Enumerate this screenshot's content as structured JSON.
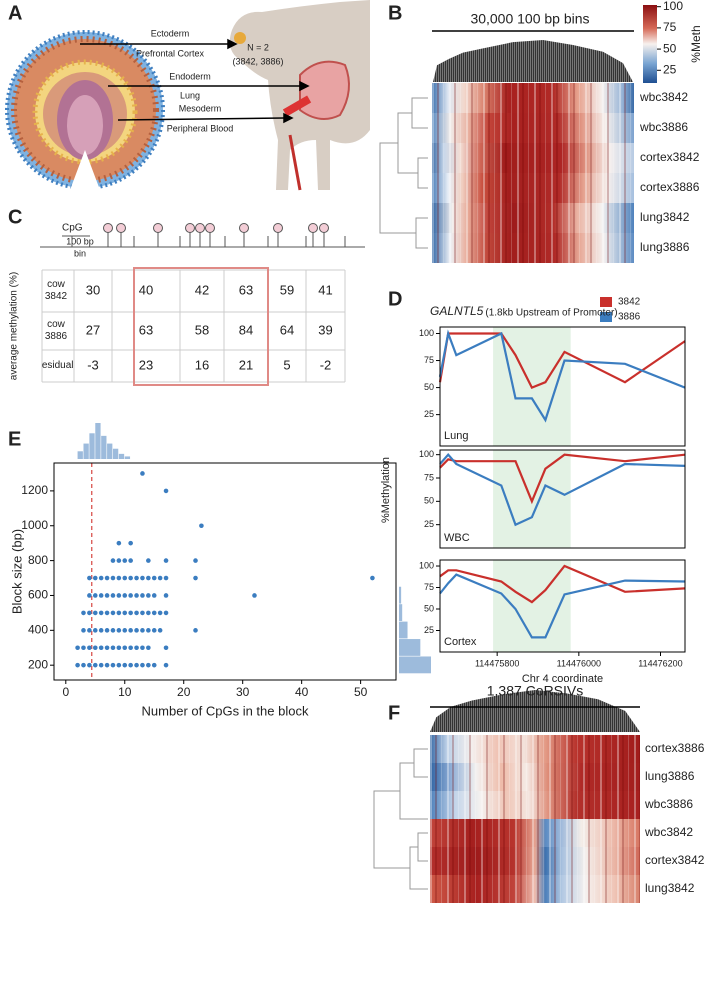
{
  "panel_a": {
    "letter": "A",
    "ectoderm": "Ectoderm",
    "ectoderm_tissue": "Prefrontal Cortex",
    "n": "N = 2",
    "animals": "(3842, 3886)",
    "endoderm": "Endoderm",
    "endoderm_tissue": "Lung",
    "mesoderm": "Mesoderm",
    "mesoderm_tissue": "Peripheral Blood"
  },
  "panel_b": {
    "letter": "B",
    "title": "30,000 100 bp bins",
    "rows": [
      "wbc3842",
      "wbc3886",
      "cortex3842",
      "cortex3886",
      "lung3842",
      "lung3886"
    ],
    "colorbar": {
      "label": "%Meth",
      "range": [
        10,
        102
      ],
      "ticks": [
        100,
        75,
        50,
        25
      ]
    }
  },
  "panel_c": {
    "letter": "C",
    "cpg": "CpG",
    "bin_size": "100 bp",
    "bin": "bin",
    "ylabel": "average methylation (%)",
    "rows": [
      [
        "cow 3842",
        30,
        40,
        42,
        63,
        59,
        41
      ],
      [
        "cow 3886",
        27,
        63,
        58,
        84,
        64,
        39
      ],
      [
        "residual",
        -3,
        23,
        16,
        21,
        5,
        -2
      ]
    ]
  },
  "panel_d": {
    "letter": "D"
  },
  "panel_e": {
    "letter": "E"
  },
  "panel_f": {
    "letter": "F",
    "title": "1,387 CoRSIVs",
    "rows": [
      "cortex3886",
      "lung3886",
      "wbc3886",
      "wbc3842",
      "cortex3842",
      "lung3842"
    ]
  },
  "chart_data": [
    {
      "type": "line",
      "title": "GALNTL5",
      "subtitle": "(1.8kb Upstream of Promoter)",
      "panel_label": "Lung",
      "x": [
        114475660,
        114475680,
        114475700,
        114475810,
        114475845,
        114475885,
        114475918,
        114475965,
        114476113,
        114476260
      ],
      "xlim": [
        114475660,
        114476260
      ],
      "ylim": [
        -4,
        106
      ],
      "yticks": [
        25,
        50,
        75,
        100
      ],
      "shade": [
        114475790,
        114475980
      ],
      "series": [
        {
          "name": "3842",
          "color": "#c9302c",
          "values": [
            55,
            100,
            100,
            100,
            80,
            50,
            55,
            83,
            55,
            93
          ]
        },
        {
          "name": "3886",
          "color": "#3b7dc0",
          "values": [
            60,
            100,
            80,
            100,
            40,
            40,
            20,
            75,
            72,
            50
          ]
        }
      ]
    },
    {
      "type": "line",
      "panel_label": "WBC",
      "ylabel": "%Methylation",
      "x": [
        114475660,
        114475680,
        114475700,
        114475810,
        114475845,
        114475885,
        114475918,
        114475965,
        114476113,
        114476260
      ],
      "xlim": [
        114475660,
        114476260
      ],
      "ylim": [
        0,
        105
      ],
      "yticks": [
        25,
        50,
        75,
        100
      ],
      "shade": [
        114475790,
        114475980
      ],
      "series": [
        {
          "color": "#c9302c",
          "values": [
            86,
            95,
            93,
            93,
            93,
            50,
            85,
            100,
            93,
            100
          ]
        },
        {
          "color": "#3b7dc0",
          "values": [
            90,
            100,
            90,
            67,
            25,
            33,
            67,
            57,
            90,
            88
          ]
        }
      ]
    },
    {
      "type": "line",
      "panel_label": "Cortex",
      "xlabel": "Chr 4 coordinate",
      "x": [
        114475660,
        114475680,
        114475700,
        114475810,
        114475845,
        114475885,
        114475918,
        114475965,
        114476113,
        114476260
      ],
      "xlim": [
        114475660,
        114476260
      ],
      "ylim": [
        0,
        107
      ],
      "yticks": [
        25,
        50,
        75,
        100
      ],
      "xticks": [
        114475800,
        114476000,
        114476200
      ],
      "shade": [
        114475790,
        114475980
      ],
      "series": [
        {
          "color": "#c9302c",
          "values": [
            88,
            95,
            95,
            82,
            70,
            58,
            72,
            100,
            70,
            74
          ]
        },
        {
          "color": "#3b7dc0",
          "values": [
            68,
            80,
            90,
            68,
            50,
            17,
            17,
            67,
            83,
            82
          ]
        }
      ]
    },
    {
      "type": "scatter",
      "xlabel": "Number of CpGs in the block",
      "ylabel": "Block size (bp)",
      "color": "#3b7dc0",
      "xlim": [
        -2,
        56
      ],
      "ylim": [
        115,
        1360
      ],
      "xticks": [
        0,
        10,
        20,
        30,
        40,
        50
      ],
      "yticks": [
        200,
        400,
        600,
        800,
        1000,
        1200
      ],
      "vline": 4.4,
      "vline_color": "#d9534f",
      "x": [
        2,
        3,
        4,
        5,
        6,
        7,
        8,
        9,
        10,
        11,
        12,
        13,
        14,
        15,
        17,
        2,
        3,
        4,
        5,
        6,
        7,
        8,
        9,
        10,
        11,
        12,
        13,
        14,
        17,
        3,
        4,
        5,
        6,
        7,
        8,
        9,
        10,
        11,
        12,
        13,
        14,
        15,
        16,
        22,
        3,
        4,
        5,
        6,
        7,
        8,
        9,
        10,
        11,
        12,
        13,
        14,
        15,
        16,
        17,
        4,
        5,
        6,
        7,
        8,
        9,
        10,
        11,
        12,
        13,
        14,
        15,
        17,
        32,
        4,
        5,
        6,
        7,
        8,
        9,
        10,
        11,
        12,
        13,
        14,
        15,
        16,
        17,
        22,
        52,
        8,
        9,
        10,
        11,
        14,
        17,
        22,
        9,
        11,
        23,
        17,
        13
      ],
      "values": [
        200,
        200,
        200,
        200,
        200,
        200,
        200,
        200,
        200,
        200,
        200,
        200,
        200,
        200,
        200,
        300,
        300,
        300,
        300,
        300,
        300,
        300,
        300,
        300,
        300,
        300,
        300,
        300,
        300,
        400,
        400,
        400,
        400,
        400,
        400,
        400,
        400,
        400,
        400,
        400,
        400,
        400,
        400,
        400,
        500,
        500,
        500,
        500,
        500,
        500,
        500,
        500,
        500,
        500,
        500,
        500,
        500,
        500,
        500,
        600,
        600,
        600,
        600,
        600,
        600,
        600,
        600,
        600,
        600,
        600,
        600,
        600,
        600,
        700,
        700,
        700,
        700,
        700,
        700,
        700,
        700,
        700,
        700,
        700,
        700,
        700,
        700,
        700,
        700,
        800,
        800,
        800,
        800,
        800,
        800,
        800,
        900,
        900,
        1000,
        1200,
        1300
      ],
      "x_marginal": {
        "bins": [
          2,
          3,
          4,
          5,
          6,
          7,
          8,
          9,
          10,
          11
        ],
        "counts": [
          3,
          6,
          10,
          14,
          9,
          6,
          4,
          2,
          1
        ]
      },
      "y_marginal": {
        "bins": [
          150,
          250,
          350,
          450,
          550,
          650
        ],
        "counts": [
          30,
          20,
          8,
          3,
          2
        ]
      }
    }
  ]
}
